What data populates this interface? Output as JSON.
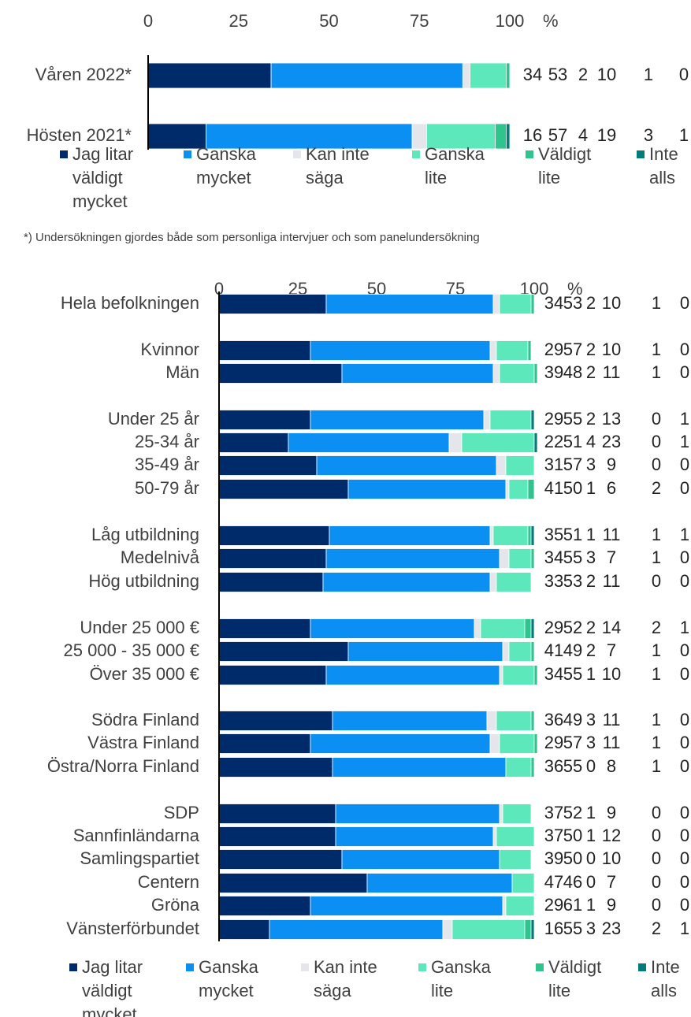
{
  "chart_data": [
    {
      "type": "bar",
      "orientation": "horizontal",
      "stacked": true,
      "xlabel": "%",
      "xlim": [
        0,
        100
      ],
      "xticks": [
        0,
        25,
        50,
        75,
        100
      ],
      "note": "*) Undersökningen gjordes både som personliga intervjuer och som panelundersökning",
      "categories": [
        "Våren 2022*",
        "Hösten 2021*"
      ],
      "series": [
        {
          "name": "Jag litar väldigt mycket",
          "color": "#002b6b",
          "values": [
            34,
            16
          ]
        },
        {
          "name": "Ganska mycket",
          "color": "#0b8ff2",
          "values": [
            53,
            57
          ]
        },
        {
          "name": "Kan inte säga",
          "color": "#e4e6ec",
          "values": [
            2,
            4
          ]
        },
        {
          "name": "Ganska lite",
          "color": "#5ce8ba",
          "values": [
            10,
            19
          ]
        },
        {
          "name": "Väldigt lite",
          "color": "#2fc48e",
          "values": [
            1,
            3
          ]
        },
        {
          "name": "Inte alls",
          "color": "#007d7a",
          "values": [
            0,
            1
          ]
        }
      ]
    },
    {
      "type": "bar",
      "orientation": "horizontal",
      "stacked": true,
      "xlabel": "%",
      "xlim": [
        0,
        100
      ],
      "xticks": [
        0,
        25,
        50,
        75,
        100
      ],
      "categories": [
        "Hela befolkningen",
        "Kvinnor",
        "Män",
        "Under 25 år",
        "25-34 år",
        "35-49 år",
        "50-79 år",
        "Låg utbildning",
        "Medelnivå",
        "Hög utbildning",
        "Under 25 000 €",
        "25 000 - 35 000 €",
        "Över 35 000 €",
        "Södra Finland",
        "Västra Finland",
        "Östra/Norra Finland",
        "SDP",
        "Sannfinländarna",
        "Samlingspartiet",
        "Centern",
        "Gröna",
        "Vänsterförbundet"
      ],
      "series": [
        {
          "name": "Jag litar väldigt mycket",
          "color": "#002b6b",
          "values": [
            34,
            29,
            39,
            29,
            22,
            31,
            41,
            35,
            34,
            33,
            29,
            41,
            34,
            36,
            29,
            36,
            37,
            37,
            39,
            47,
            29,
            16
          ]
        },
        {
          "name": "Ganska mycket",
          "color": "#0b8ff2",
          "values": [
            53,
            57,
            48,
            55,
            51,
            57,
            50,
            51,
            55,
            53,
            52,
            49,
            55,
            49,
            57,
            55,
            52,
            50,
            50,
            46,
            61,
            55
          ]
        },
        {
          "name": "Kan inte säga",
          "color": "#e4e6ec",
          "values": [
            2,
            2,
            2,
            2,
            4,
            3,
            1,
            1,
            3,
            2,
            2,
            2,
            1,
            3,
            3,
            0,
            1,
            1,
            0,
            0,
            1,
            3
          ]
        },
        {
          "name": "Ganska lite",
          "color": "#5ce8ba",
          "values": [
            10,
            10,
            11,
            13,
            23,
            9,
            6,
            11,
            7,
            11,
            14,
            7,
            10,
            11,
            11,
            8,
            9,
            12,
            10,
            7,
            9,
            23
          ]
        },
        {
          "name": "Väldigt lite",
          "color": "#2fc48e",
          "values": [
            1,
            1,
            1,
            0,
            0,
            0,
            2,
            1,
            1,
            0,
            2,
            1,
            1,
            1,
            1,
            1,
            0,
            0,
            0,
            0,
            0,
            2
          ]
        },
        {
          "name": "Inte alls",
          "color": "#007d7a",
          "values": [
            0,
            0,
            0,
            1,
            1,
            0,
            0,
            1,
            0,
            0,
            1,
            0,
            0,
            0,
            0,
            0,
            0,
            0,
            0,
            0,
            0,
            1
          ]
        }
      ]
    }
  ]
}
